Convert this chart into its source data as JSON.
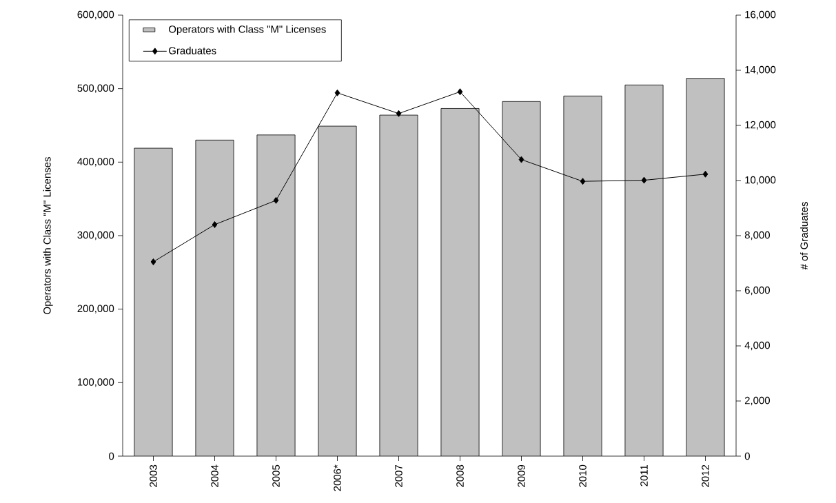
{
  "chart_data": {
    "type": "bar",
    "categories": [
      "2003",
      "2004",
      "2005",
      "2006*",
      "2007",
      "2008",
      "2009",
      "2010",
      "2011",
      "2012"
    ],
    "series": [
      {
        "name": "Operators with Class \"M\" Licenses",
        "color": "#c0c0c0",
        "values": [
          419000,
          430000,
          437000,
          449000,
          464000,
          473000,
          482500,
          490000,
          505000,
          514000
        ]
      },
      {
        "name": "Graduates",
        "type": "line",
        "axis": "y2",
        "color": "#000000",
        "values": [
          7050,
          8400,
          9280,
          13180,
          12430,
          13220,
          10760,
          9970,
          10010,
          10230
        ]
      }
    ],
    "ylabel": "Operators with Class \"M\" Licenses",
    "y2label": "# of Graduates",
    "ylim": [
      0,
      600000
    ],
    "yticks": [
      {
        "value": 0,
        "label": "0"
      },
      {
        "value": 100000,
        "label": "100,000"
      },
      {
        "value": 200000,
        "label": "200,000"
      },
      {
        "value": 300000,
        "label": "300,000"
      },
      {
        "value": 400000,
        "label": "400,000"
      },
      {
        "value": 500000,
        "label": "500,000"
      },
      {
        "value": 600000,
        "label": "600,000"
      }
    ],
    "y2lim": [
      0,
      16000
    ],
    "y2ticks": [
      {
        "value": 0,
        "label": "0"
      },
      {
        "value": 2000,
        "label": "2,000"
      },
      {
        "value": 4000,
        "label": "4,000"
      },
      {
        "value": 6000,
        "label": "6,000"
      },
      {
        "value": 8000,
        "label": "8,000"
      },
      {
        "value": 10000,
        "label": "10,000"
      },
      {
        "value": 12000,
        "label": "12,000"
      },
      {
        "value": 14000,
        "label": "14,000"
      },
      {
        "value": 16000,
        "label": "16,000"
      }
    ],
    "marker": "diamond",
    "legend": "top left"
  }
}
